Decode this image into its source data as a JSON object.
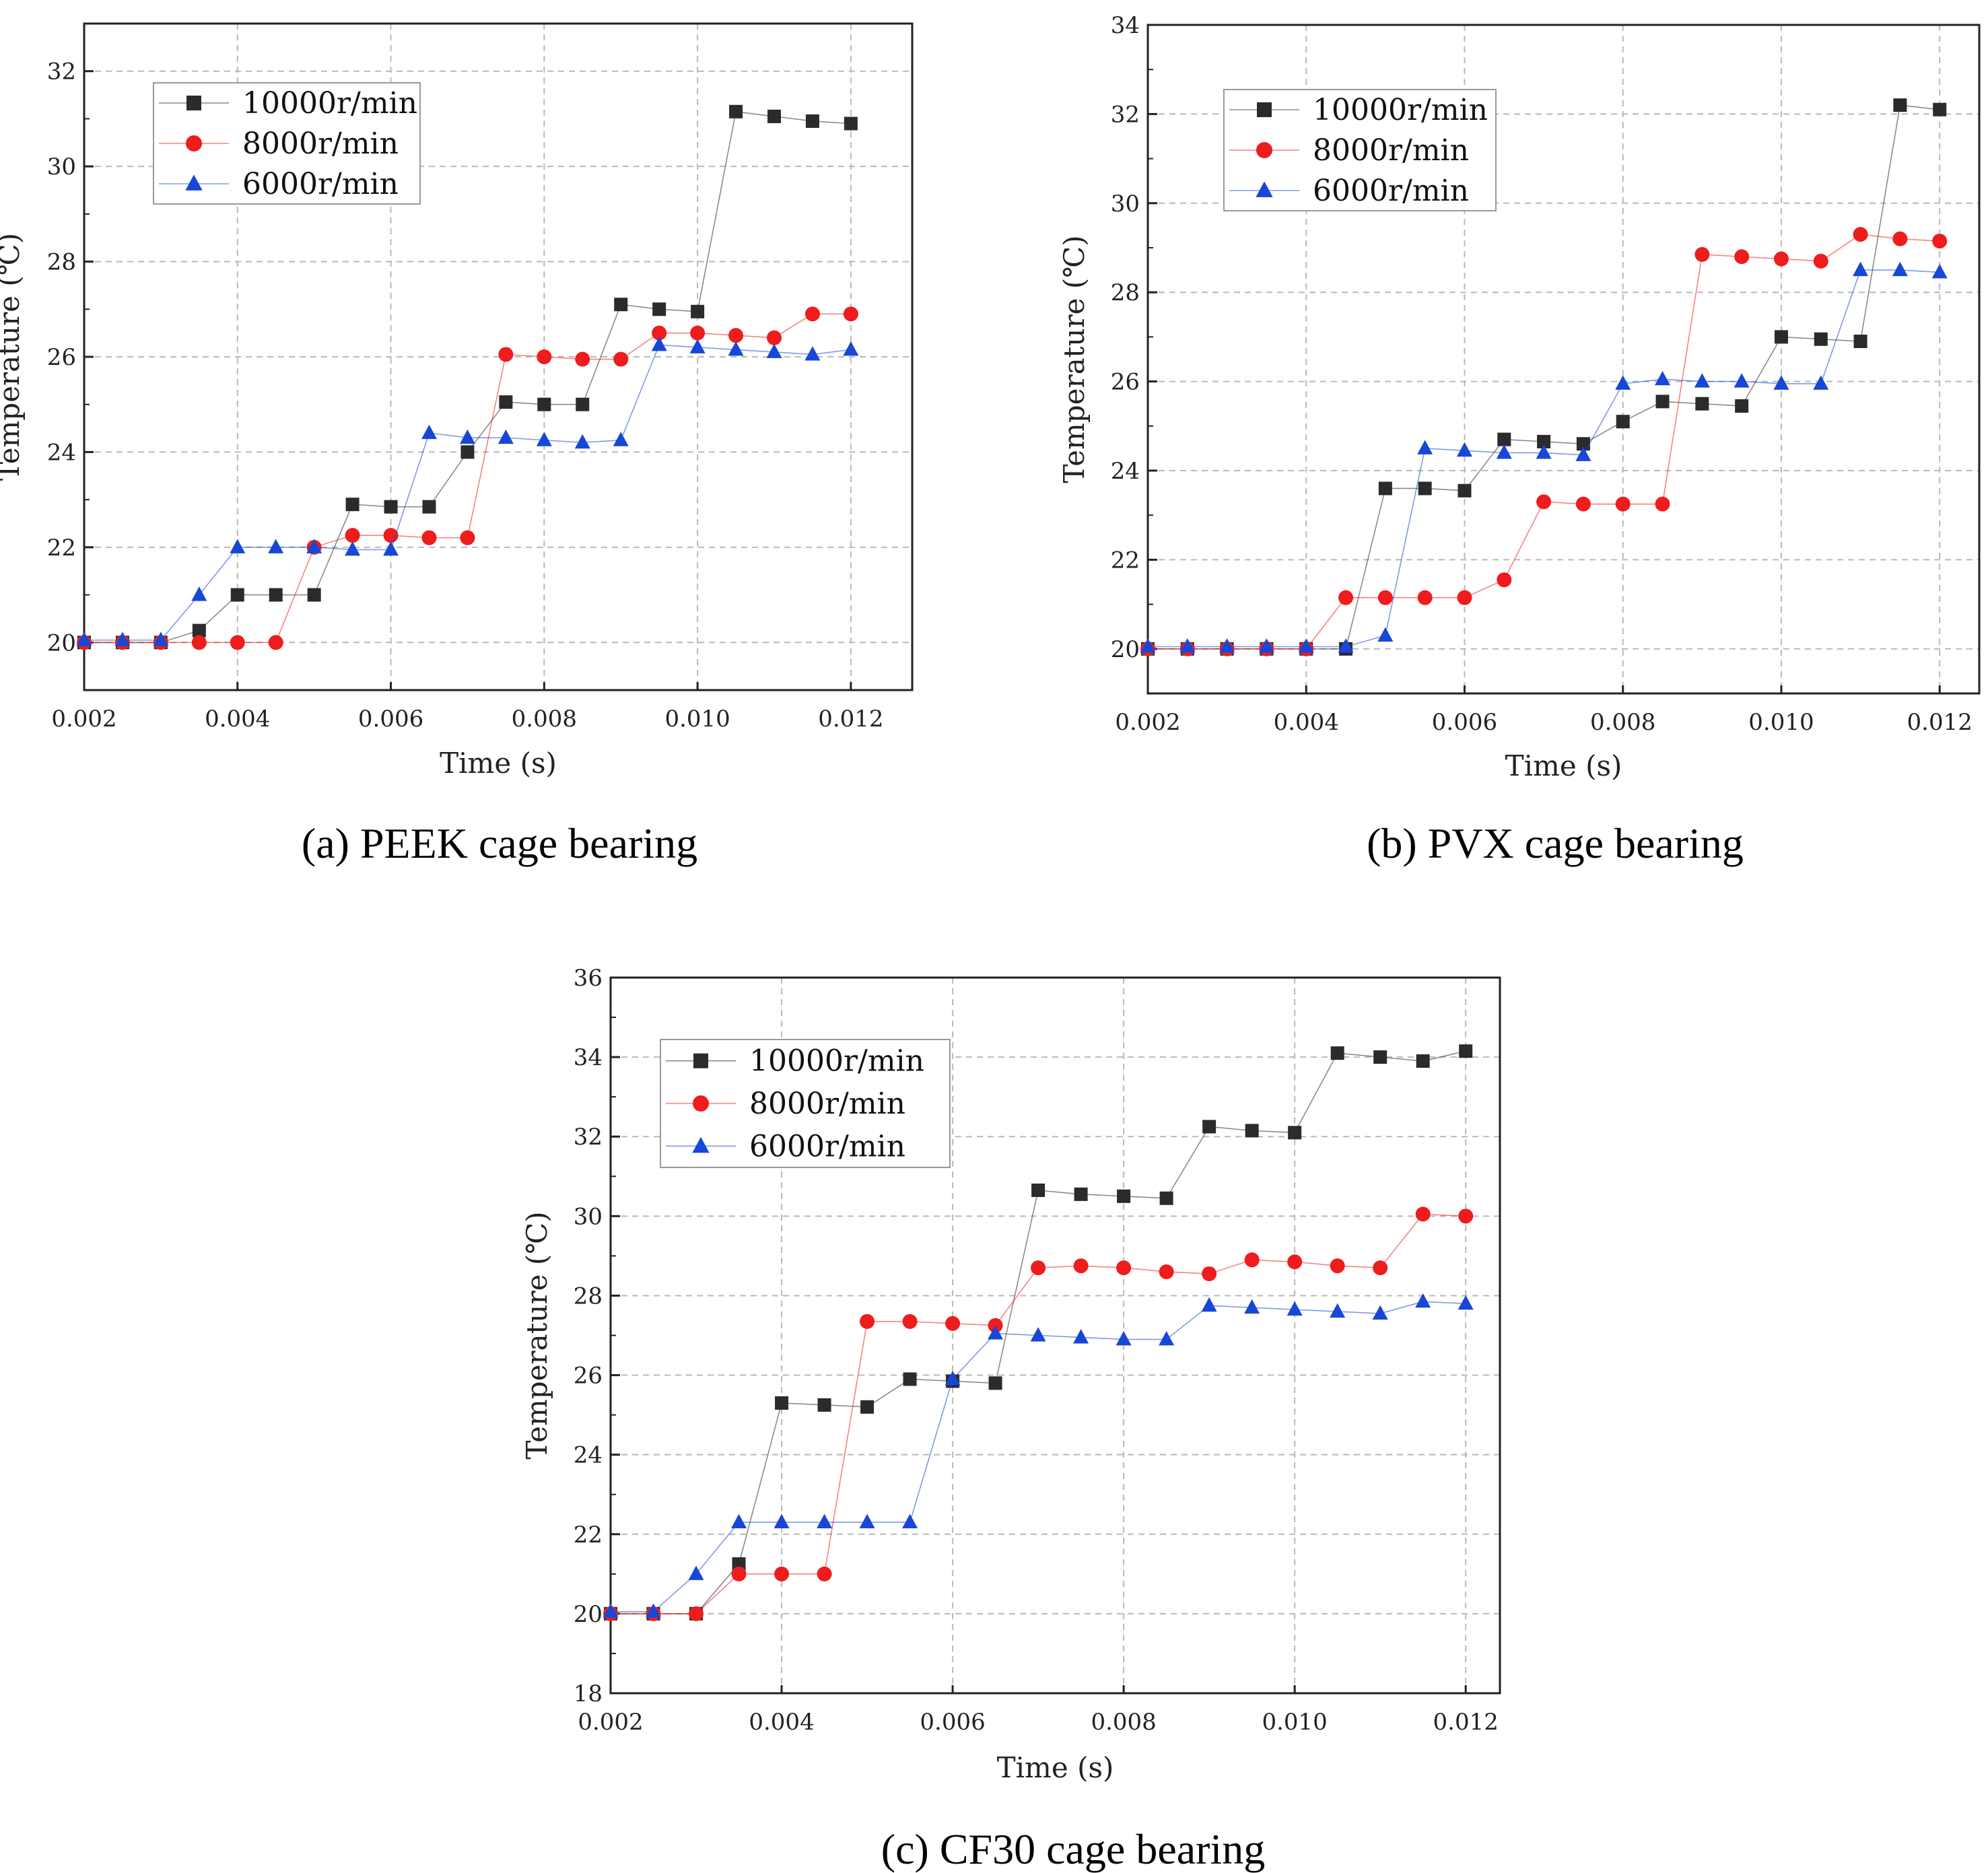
{
  "chart_data": [
    {
      "type": "line",
      "caption": "(a) PEEK  cage bearing",
      "xlabel": "Time (s)",
      "ylabel": "Temperature (℃)",
      "xlim": [
        0.002,
        0.0128
      ],
      "ylim": [
        19,
        33
      ],
      "xticks": [
        "0.002",
        "0.004",
        "0.006",
        "0.008",
        "0.010",
        "0.012"
      ],
      "yticks": [
        "20",
        "22",
        "24",
        "26",
        "28",
        "30",
        "32"
      ],
      "grid": true,
      "legend_position": "top-left",
      "x": [
        0.002,
        0.0025,
        0.003,
        0.0035,
        0.004,
        0.0045,
        0.005,
        0.0055,
        0.006,
        0.0065,
        0.007,
        0.0075,
        0.008,
        0.0085,
        0.009,
        0.0095,
        0.01,
        0.0105,
        0.011,
        0.0115,
        0.012
      ],
      "series": [
        {
          "name": "10000r/min",
          "color": "#2b2b2b",
          "marker": "square",
          "values": [
            20.0,
            20.0,
            20.0,
            20.25,
            21.0,
            21.0,
            21.0,
            22.9,
            22.85,
            22.85,
            24.0,
            25.05,
            25.0,
            25.0,
            27.1,
            27.0,
            26.95,
            31.15,
            31.05,
            30.95,
            30.9
          ]
        },
        {
          "name": "8000r/min",
          "color": "#ee1c1c",
          "marker": "circle",
          "values": [
            20.0,
            20.0,
            20.0,
            20.0,
            20.0,
            20.0,
            22.0,
            22.25,
            22.25,
            22.2,
            22.2,
            26.05,
            26.0,
            25.95,
            25.95,
            26.5,
            26.5,
            26.45,
            26.4,
            26.9,
            26.9
          ]
        },
        {
          "name": "6000r/min",
          "color": "#1747d6",
          "marker": "triangle",
          "values": [
            20.05,
            20.05,
            20.05,
            21.0,
            22.0,
            22.0,
            22.0,
            21.95,
            21.95,
            24.4,
            24.3,
            24.3,
            24.25,
            24.2,
            24.25,
            26.25,
            26.2,
            26.15,
            26.1,
            26.05,
            26.15
          ]
        }
      ]
    },
    {
      "type": "line",
      "caption": "(b) PVX cage bearing",
      "xlabel": "Time (s)",
      "ylabel": "Temperature (℃)",
      "xlim": [
        0.002,
        0.0125
      ],
      "ylim": [
        19,
        34
      ],
      "xticks": [
        "0.002",
        "0.004",
        "0.006",
        "0.008",
        "0.010",
        "0.012"
      ],
      "yticks": [
        "20",
        "22",
        "24",
        "26",
        "28",
        "30",
        "32",
        "34"
      ],
      "grid": true,
      "legend_position": "top-left",
      "x": [
        0.002,
        0.0025,
        0.003,
        0.0035,
        0.004,
        0.0045,
        0.005,
        0.0055,
        0.006,
        0.0065,
        0.007,
        0.0075,
        0.008,
        0.0085,
        0.009,
        0.0095,
        0.01,
        0.0105,
        0.011,
        0.0115,
        0.012
      ],
      "series": [
        {
          "name": "10000r/min",
          "color": "#2b2b2b",
          "marker": "square",
          "values": [
            20.0,
            20.0,
            20.0,
            20.0,
            20.0,
            20.0,
            23.6,
            23.6,
            23.55,
            24.7,
            24.65,
            24.6,
            25.1,
            25.55,
            25.5,
            25.45,
            27.0,
            26.95,
            26.9,
            32.2,
            32.1
          ]
        },
        {
          "name": "8000r/min",
          "color": "#ee1c1c",
          "marker": "circle",
          "values": [
            20.0,
            20.0,
            20.0,
            20.0,
            20.0,
            21.15,
            21.15,
            21.15,
            21.15,
            21.55,
            23.3,
            23.25,
            23.25,
            23.25,
            28.85,
            28.8,
            28.75,
            28.7,
            29.3,
            29.2,
            29.15
          ]
        },
        {
          "name": "6000r/min",
          "color": "#1747d6",
          "marker": "triangle",
          "values": [
            20.05,
            20.05,
            20.05,
            20.05,
            20.05,
            20.05,
            20.3,
            24.5,
            24.45,
            24.4,
            24.4,
            24.35,
            25.95,
            26.05,
            26.0,
            26.0,
            25.95,
            25.95,
            28.5,
            28.5,
            28.45
          ]
        }
      ]
    },
    {
      "type": "line",
      "caption": "(c) CF30 cage bearing",
      "xlabel": "Time (s)",
      "ylabel": "Temperature (℃)",
      "xlim": [
        0.002,
        0.0124
      ],
      "ylim": [
        18,
        36
      ],
      "xticks": [
        "0.002",
        "0.004",
        "0.006",
        "0.008",
        "0.010",
        "0.012"
      ],
      "yticks": [
        "18",
        "20",
        "22",
        "24",
        "26",
        "28",
        "30",
        "32",
        "34",
        "36"
      ],
      "grid": true,
      "legend_position": "top-left",
      "x": [
        0.002,
        0.0025,
        0.003,
        0.0035,
        0.004,
        0.0045,
        0.005,
        0.0055,
        0.006,
        0.0065,
        0.007,
        0.0075,
        0.008,
        0.0085,
        0.009,
        0.0095,
        0.01,
        0.0105,
        0.011,
        0.0115,
        0.012
      ],
      "series": [
        {
          "name": "10000r/min",
          "color": "#2b2b2b",
          "marker": "square",
          "values": [
            20.0,
            20.0,
            20.0,
            21.25,
            25.3,
            25.25,
            25.2,
            25.9,
            25.85,
            25.8,
            30.65,
            30.55,
            30.5,
            30.45,
            32.25,
            32.15,
            32.1,
            34.1,
            34.0,
            33.9,
            34.15
          ]
        },
        {
          "name": "8000r/min",
          "color": "#ee1c1c",
          "marker": "circle",
          "values": [
            20.0,
            20.0,
            20.0,
            21.0,
            21.0,
            21.0,
            27.35,
            27.35,
            27.3,
            27.25,
            28.7,
            28.75,
            28.7,
            28.6,
            28.55,
            28.9,
            28.85,
            28.75,
            28.7,
            30.05,
            30.0
          ]
        },
        {
          "name": "6000r/min",
          "color": "#1747d6",
          "marker": "triangle",
          "values": [
            20.05,
            20.05,
            21.0,
            22.3,
            22.3,
            22.3,
            22.3,
            22.3,
            25.9,
            27.05,
            27.0,
            26.95,
            26.9,
            26.9,
            27.75,
            27.7,
            27.65,
            27.6,
            27.55,
            27.85,
            27.8
          ]
        }
      ]
    }
  ]
}
